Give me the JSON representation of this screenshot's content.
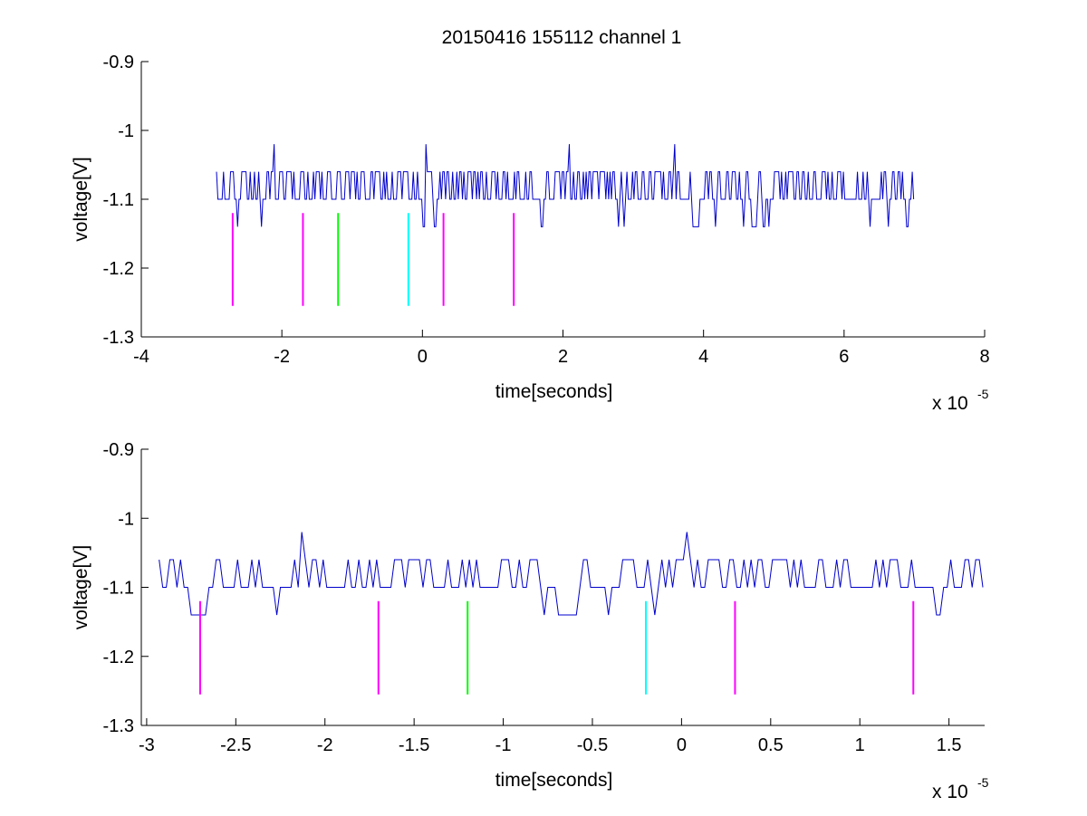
{
  "figure": {
    "title": "20150416 155112 channel 1",
    "background": "#ffffff",
    "trace_color": "#0000cc",
    "marker_colors": {
      "magenta": "#ff00ff",
      "green": "#00ff00",
      "cyan": "#00ffff"
    }
  },
  "chart_data": [
    {
      "type": "line",
      "title": "20150416 155112 channel 1",
      "xlabel": "time[seconds]",
      "ylabel": "voltage[V]",
      "x_exponent_label": "x 10",
      "x_exponent": "-5",
      "x_scale": 1e-05,
      "xlim": [
        -4,
        8
      ],
      "ylim": [
        -1.3,
        -0.9
      ],
      "y_reversed": true,
      "x_ticks": [
        -4,
        -2,
        0,
        2,
        4,
        6,
        8
      ],
      "x_tick_labels": [
        "-4",
        "-2",
        "0",
        "2",
        "4",
        "6",
        "8"
      ],
      "y_ticks": [
        -0.9,
        -1,
        -1.1,
        -1.2,
        -1.3
      ],
      "y_tick_labels": [
        "-0.9",
        "-1",
        "-1.1",
        "-1.2",
        "-1.3"
      ],
      "grid": false,
      "series": [
        {
          "color": "#0000cc",
          "x_range": [
            -2.93,
            7.0
          ],
          "baseline": -1.1,
          "levels": [
            -1.06,
            -1.14
          ],
          "spikes": [
            {
              "x": -2.1,
              "y": -1.02
            },
            {
              "x": 0.05,
              "y": -1.02
            },
            {
              "x": 2.1,
              "y": -1.02
            },
            {
              "x": 3.6,
              "y": -1.02
            }
          ]
        }
      ],
      "markers": [
        {
          "x": -2.7,
          "y0": -1.12,
          "y1": -1.255,
          "color": "#ff00ff"
        },
        {
          "x": -1.7,
          "y0": -1.12,
          "y1": -1.255,
          "color": "#ff00ff"
        },
        {
          "x": -1.2,
          "y0": -1.12,
          "y1": -1.255,
          "color": "#00ff00"
        },
        {
          "x": -0.2,
          "y0": -1.12,
          "y1": -1.255,
          "color": "#00ffff"
        },
        {
          "x": 0.3,
          "y0": -1.12,
          "y1": -1.255,
          "color": "#ff00ff"
        },
        {
          "x": 1.3,
          "y0": -1.12,
          "y1": -1.255,
          "color": "#ff00ff"
        }
      ]
    },
    {
      "type": "line",
      "xlabel": "time[seconds]",
      "ylabel": "voltage[V]",
      "x_exponent_label": "x 10",
      "x_exponent": "-5",
      "x_scale": 1e-05,
      "xlim": [
        -3.03,
        1.7
      ],
      "ylim": [
        -1.3,
        -0.9
      ],
      "y_reversed": true,
      "x_ticks": [
        -3,
        -2.5,
        -2,
        -1.5,
        -1,
        -0.5,
        0,
        0.5,
        1,
        1.5
      ],
      "x_tick_labels": [
        "-3",
        "-2.5",
        "-2",
        "-1.5",
        "-1",
        "-0.5",
        "0",
        "0.5",
        "1",
        "1.5"
      ],
      "y_ticks": [
        -0.9,
        -1,
        -1.1,
        -1.2,
        -1.3
      ],
      "y_tick_labels": [
        "-0.9",
        "-1",
        "-1.1",
        "-1.2",
        "-1.3"
      ],
      "grid": false,
      "series": [
        {
          "color": "#0000cc",
          "x_range": [
            -2.93,
            1.7
          ],
          "baseline": -1.1,
          "levels": [
            -1.06,
            -1.14
          ],
          "spikes": [
            {
              "x": -2.12,
              "y": -1.02
            },
            {
              "x": 0.03,
              "y": -1.02
            }
          ]
        }
      ],
      "markers": [
        {
          "x": -2.7,
          "y0": -1.12,
          "y1": -1.255,
          "color": "#ff00ff"
        },
        {
          "x": -1.7,
          "y0": -1.12,
          "y1": -1.255,
          "color": "#ff00ff"
        },
        {
          "x": -1.2,
          "y0": -1.12,
          "y1": -1.255,
          "color": "#00ff00"
        },
        {
          "x": -0.2,
          "y0": -1.12,
          "y1": -1.255,
          "color": "#00ffff"
        },
        {
          "x": 0.3,
          "y0": -1.12,
          "y1": -1.255,
          "color": "#ff00ff"
        },
        {
          "x": 1.3,
          "y0": -1.12,
          "y1": -1.255,
          "color": "#ff00ff"
        }
      ]
    }
  ]
}
